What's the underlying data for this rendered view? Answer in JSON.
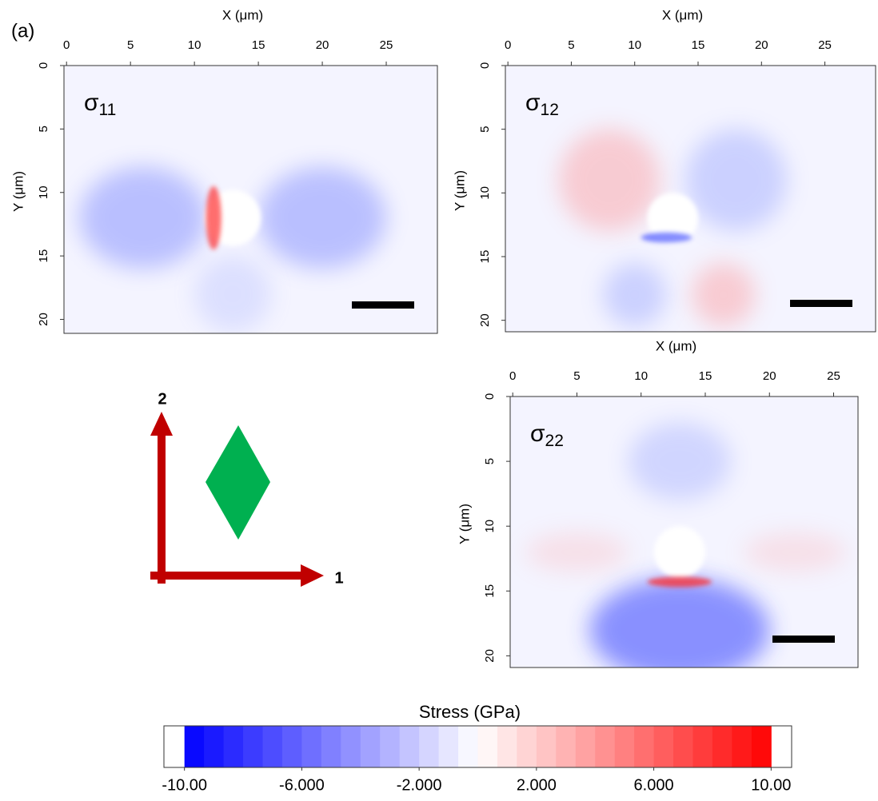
{
  "figure_label": "(a)",
  "chart_data": [
    {
      "type": "heatmap",
      "symbol": "σ",
      "subscript": "11",
      "xlabel": "X (μm)",
      "ylabel": "Y (μm)",
      "xlim": [
        -0.2,
        29
      ],
      "ylim": [
        0,
        21.1
      ],
      "xticks": [
        0,
        5,
        10,
        15,
        20,
        25
      ],
      "yticks": [
        0,
        5,
        10,
        15,
        20
      ]
    },
    {
      "type": "heatmap",
      "symbol": "σ",
      "subscript": "12",
      "xlabel": "X (μm)",
      "ylabel": "Y (μm)",
      "xlim": [
        -0.2,
        29
      ],
      "ylim": [
        0,
        20.9
      ],
      "xticks": [
        0,
        5,
        10,
        15,
        20,
        25
      ],
      "yticks": [
        0,
        5,
        10,
        15,
        20
      ]
    },
    {
      "type": "heatmap",
      "symbol": "σ",
      "subscript": "22",
      "xlabel": "X (μm)",
      "ylabel": "Y (μm)",
      "xlim": [
        -0.2,
        26.9
      ],
      "ylim": [
        0,
        20.9
      ],
      "xticks": [
        0,
        5,
        10,
        15,
        20,
        25
      ],
      "yticks": [
        0,
        5,
        10,
        15,
        20
      ]
    }
  ],
  "axes_labels": {
    "axis1": "1",
    "axis2": "2"
  },
  "colorbar": {
    "title": "Stress (GPa)",
    "lim": [
      -10.7,
      10.7
    ],
    "range": [
      -10,
      10
    ],
    "cmap": [
      "#0000ff",
      "#ffffff",
      "#ff0000"
    ],
    "ticks": [
      {
        "value": -10,
        "label": "-10.00"
      },
      {
        "value": -6,
        "label": "-6.000"
      },
      {
        "value": -2,
        "label": "-2.000"
      },
      {
        "value": 2,
        "label": "2.000"
      },
      {
        "value": 6,
        "label": "6.000"
      },
      {
        "value": 10,
        "label": "10.00"
      }
    ]
  }
}
